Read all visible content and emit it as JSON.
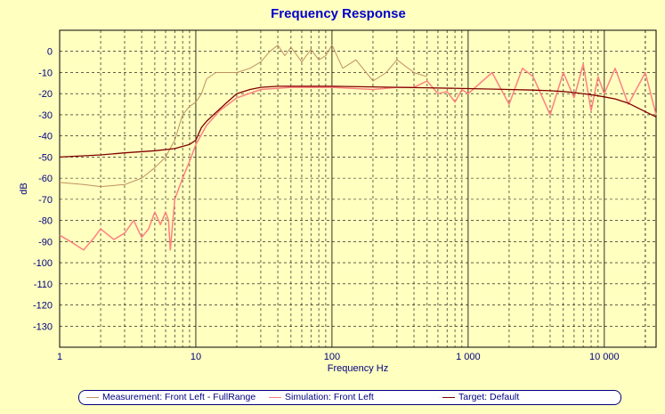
{
  "chart_data": {
    "type": "line",
    "title": "Frequency Response",
    "xlabel": "Frequency Hz",
    "ylabel": "dB",
    "xscale": "log",
    "xlim": [
      1,
      24000
    ],
    "ylim": [
      -140,
      10
    ],
    "grid": true,
    "legend_placement": "bottom",
    "x_tick_labels": [
      {
        "value": 1,
        "label": "1"
      },
      {
        "value": 10,
        "label": "10"
      },
      {
        "value": 100,
        "label": "100"
      },
      {
        "value": 1000,
        "label": "1 000"
      },
      {
        "value": 10000,
        "label": "10 000"
      }
    ],
    "y_ticks": [
      0,
      -10,
      -20,
      -30,
      -40,
      -50,
      -60,
      -70,
      -80,
      -90,
      -100,
      -110,
      -120,
      -130
    ],
    "colors": {
      "background": "#FFFFC0",
      "title": "#0000CC",
      "axis_text": "#000080",
      "grid_major": "#000000",
      "grid_minor": "#000000"
    },
    "series": [
      {
        "name": "Measurement: Front Left - FullRange",
        "color": "#C09060",
        "x": [
          1,
          1.5,
          2,
          3,
          4,
          5,
          6,
          7,
          8,
          9,
          10,
          11,
          12,
          14,
          17,
          20,
          25,
          30,
          35,
          40,
          45,
          50,
          60,
          70,
          80,
          90,
          100,
          120,
          150,
          200,
          250,
          300,
          400,
          500
        ],
        "y": [
          -62,
          -63,
          -64,
          -63,
          -60,
          -55,
          -50,
          -42,
          -30,
          -26,
          -24,
          -20,
          -13,
          -10,
          -10,
          -10,
          -8,
          -5,
          0,
          3,
          -2,
          2,
          -5,
          1,
          -4,
          -2,
          3,
          -8,
          -4,
          -14,
          -10,
          -4,
          -10,
          -12
        ]
      },
      {
        "name": "Simulation: Front Left",
        "color": "#FF8080",
        "x": [
          1,
          1.2,
          1.5,
          1.8,
          2,
          2.5,
          3,
          3.5,
          4,
          4.5,
          5,
          5.5,
          6,
          6.3,
          6.5,
          7,
          8,
          9,
          10,
          12,
          15,
          20,
          30,
          50,
          100,
          200,
          300,
          400,
          500,
          600,
          700,
          800,
          900,
          1000,
          1500,
          2000,
          2500,
          3000,
          4000,
          5000,
          6000,
          7000,
          8000,
          9000,
          10000,
          12000,
          15000,
          20000,
          24000
        ],
        "y": [
          -87,
          -90,
          -94,
          -88,
          -84,
          -89,
          -86,
          -80,
          -88,
          -84,
          -76,
          -82,
          -76,
          -80,
          -94,
          -70,
          -60,
          -52,
          -44,
          -35,
          -28,
          -22,
          -18,
          -17,
          -17,
          -18,
          -17,
          -17,
          -14,
          -20,
          -19,
          -24,
          -18,
          -20,
          -10,
          -25,
          -8,
          -12,
          -30,
          -10,
          -22,
          -6,
          -28,
          -12,
          -20,
          -8,
          -25,
          -10,
          -30
        ]
      },
      {
        "name": "Target: Default",
        "color": "#800000",
        "x": [
          1,
          2,
          3,
          5,
          7,
          9,
          10,
          11,
          12,
          14,
          17,
          20,
          25,
          30,
          40,
          60,
          100,
          200,
          500,
          1000,
          2000,
          3000,
          4000,
          5000,
          6000,
          8000,
          10000,
          12000,
          15000,
          20000,
          24000
        ],
        "y": [
          -50,
          -49,
          -48,
          -47,
          -46,
          -44,
          -42,
          -36,
          -33,
          -29,
          -24,
          -20,
          -18,
          -17,
          -16.5,
          -16.5,
          -16.5,
          -16.8,
          -17.2,
          -17.6,
          -18,
          -18.3,
          -18.6,
          -19,
          -19.5,
          -20.5,
          -21.5,
          -22.5,
          -24.5,
          -28.5,
          -31
        ]
      }
    ]
  }
}
